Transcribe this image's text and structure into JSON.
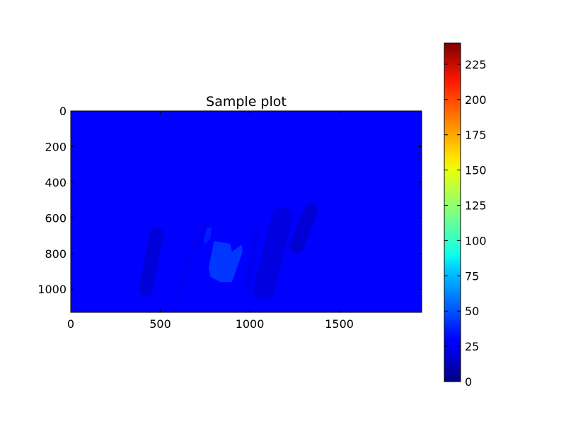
{
  "chart_data": {
    "type": "heatmap",
    "title": "Sample plot",
    "xlabel": "",
    "ylabel": "",
    "colormap": "jet",
    "xlim": [
      0,
      1960
    ],
    "ylim": [
      1130,
      0
    ],
    "x_ticks": [
      {
        "value": 0,
        "label": "0"
      },
      {
        "value": 500,
        "label": "500"
      },
      {
        "value": 1000,
        "label": "1000"
      },
      {
        "value": 1500,
        "label": "1500"
      }
    ],
    "y_ticks": [
      {
        "value": 0,
        "label": "0"
      },
      {
        "value": 200,
        "label": "200"
      },
      {
        "value": 400,
        "label": "400"
      },
      {
        "value": 600,
        "label": "600"
      },
      {
        "value": 800,
        "label": "800"
      },
      {
        "value": 1000,
        "label": "1000"
      }
    ],
    "colorbar": {
      "range": [
        0,
        240
      ],
      "ticks": [
        {
          "value": 0,
          "label": "0"
        },
        {
          "value": 25,
          "label": "25"
        },
        {
          "value": 50,
          "label": "50"
        },
        {
          "value": 75,
          "label": "75"
        },
        {
          "value": 100,
          "label": "100"
        },
        {
          "value": 125,
          "label": "125"
        },
        {
          "value": 150,
          "label": "150"
        },
        {
          "value": 175,
          "label": "175"
        },
        {
          "value": 200,
          "label": "200"
        },
        {
          "value": 225,
          "label": "225"
        }
      ]
    },
    "background_value": 0,
    "features": [
      {
        "shape": "polygon",
        "value": 45,
        "points": [
          [
            800,
            730
          ],
          [
            890,
            745
          ],
          [
            900,
            790
          ],
          [
            955,
            750
          ],
          [
            960,
            790
          ],
          [
            900,
            960
          ],
          [
            835,
            960
          ],
          [
            780,
            930
          ],
          [
            770,
            880
          ]
        ]
      },
      {
        "shape": "polygon",
        "value": 38,
        "points": [
          [
            760,
            660
          ],
          [
            785,
            650
          ],
          [
            780,
            715
          ],
          [
            755,
            745
          ],
          [
            740,
            730
          ]
        ]
      },
      {
        "shape": "band",
        "value": 25,
        "from": [
          745,
          620
        ],
        "to": [
          590,
          1030
        ],
        "half_width": 22
      },
      {
        "shape": "band",
        "value": 22,
        "from": [
          1035,
          680
        ],
        "to": [
          985,
          990
        ],
        "half_width": 20
      },
      {
        "shape": "band",
        "value": 14,
        "from": [
          1180,
          600
        ],
        "to": [
          1080,
          1000
        ],
        "half_width": 60
      },
      {
        "shape": "band",
        "value": 10,
        "from": [
          480,
          690
        ],
        "to": [
          420,
          1000
        ],
        "half_width": 40
      },
      {
        "shape": "band",
        "value": 8,
        "from": [
          1340,
          560
        ],
        "to": [
          1260,
          760
        ],
        "half_width": 40
      }
    ]
  }
}
